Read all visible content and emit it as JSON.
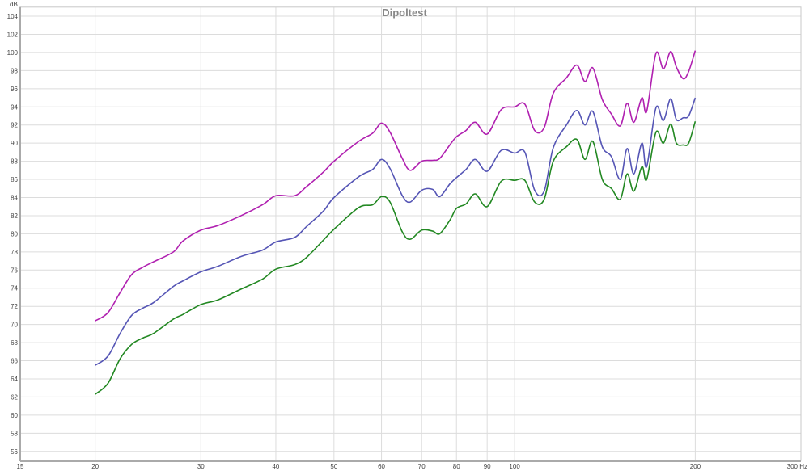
{
  "chart_data": {
    "type": "line",
    "title": "Dipoltest",
    "ylabel": "dB",
    "xunit": "Hz",
    "xscale": "log",
    "xlim": [
      15,
      300
    ],
    "ylim": [
      55,
      105
    ],
    "grid": true,
    "xticks": [
      15,
      20,
      30,
      40,
      50,
      60,
      70,
      80,
      90,
      100,
      200,
      300
    ],
    "xtick_labels": [
      "15",
      "20",
      "30",
      "40",
      "50",
      "60",
      "70",
      "80",
      "90",
      "100",
      "200",
      "300 Hz"
    ],
    "yticks": [
      56,
      58,
      60,
      62,
      64,
      66,
      68,
      70,
      72,
      74,
      76,
      78,
      80,
      82,
      84,
      86,
      88,
      90,
      92,
      94,
      96,
      98,
      100,
      102,
      104
    ],
    "x": [
      20,
      21,
      22,
      23,
      24,
      25,
      27,
      28,
      30,
      32,
      35,
      38,
      40,
      43,
      45,
      48,
      50,
      55,
      58,
      60,
      62,
      65,
      67,
      70,
      73,
      75,
      78,
      80,
      83,
      86,
      90,
      95,
      100,
      104,
      108,
      112,
      116,
      122,
      127,
      131,
      135,
      140,
      145,
      150,
      154,
      158,
      163,
      166,
      172,
      177,
      182,
      186,
      191,
      195,
      200
    ],
    "series": [
      {
        "color": "#b020b0",
        "values": [
          70.4,
          71.3,
          73.5,
          75.5,
          76.3,
          76.9,
          78.0,
          79.2,
          80.4,
          80.9,
          82.0,
          83.2,
          84.2,
          84.2,
          85.2,
          86.8,
          88.0,
          90.2,
          91.1,
          92.2,
          91.2,
          88.3,
          87.0,
          88.0,
          88.1,
          88.3,
          89.8,
          90.7,
          91.4,
          92.3,
          91.0,
          93.7,
          94.0,
          94.3,
          91.4,
          91.7,
          95.5,
          97.2,
          98.6,
          96.8,
          98.3,
          94.8,
          93.2,
          91.9,
          94.4,
          92.3,
          95.0,
          93.5,
          99.9,
          98.2,
          100.1,
          98.4,
          97.1,
          97.9,
          100.2
        ]
      },
      {
        "color": "#5555b5",
        "values": [
          65.5,
          66.5,
          69.0,
          71.0,
          71.8,
          72.4,
          74.2,
          74.8,
          75.8,
          76.4,
          77.5,
          78.2,
          79.1,
          79.6,
          80.8,
          82.5,
          84.0,
          86.3,
          87.1,
          88.2,
          87.2,
          84.2,
          83.5,
          84.8,
          84.9,
          84.1,
          85.5,
          86.2,
          87.1,
          88.2,
          86.9,
          89.2,
          88.9,
          89.0,
          84.8,
          84.7,
          89.5,
          92.0,
          93.6,
          92.0,
          93.5,
          89.6,
          88.5,
          86.0,
          89.4,
          86.6,
          90.0,
          87.4,
          93.9,
          92.5,
          94.9,
          92.6,
          92.8,
          93.0,
          95.0
        ]
      },
      {
        "color": "#228822",
        "values": [
          62.3,
          63.5,
          66.2,
          67.8,
          68.5,
          69.0,
          70.6,
          71.1,
          72.2,
          72.7,
          73.9,
          75.0,
          76.1,
          76.6,
          77.4,
          79.3,
          80.5,
          82.9,
          83.2,
          84.1,
          83.5,
          80.2,
          79.4,
          80.4,
          80.3,
          80.0,
          81.5,
          82.8,
          83.3,
          84.4,
          83.0,
          85.8,
          85.9,
          85.9,
          83.5,
          83.8,
          88.0,
          89.6,
          90.4,
          88.2,
          90.2,
          86.0,
          85.0,
          83.8,
          86.6,
          84.7,
          87.4,
          86.0,
          91.2,
          90.0,
          92.1,
          90.0,
          89.8,
          90.0,
          92.4
        ]
      }
    ]
  }
}
